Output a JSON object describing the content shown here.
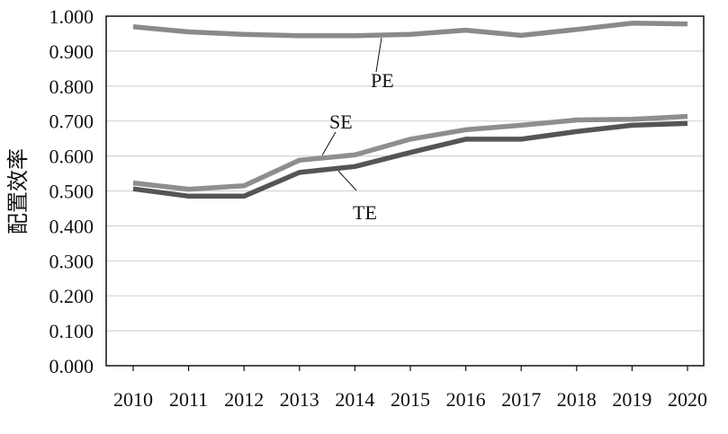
{
  "chart_data": {
    "type": "line",
    "title": "",
    "xlabel": "",
    "ylabel": "配置效率",
    "categories": [
      "2010",
      "2011",
      "2012",
      "2013",
      "2014",
      "2015",
      "2016",
      "2017",
      "2018",
      "2019",
      "2020"
    ],
    "ylim": [
      0,
      1
    ],
    "yticks": [
      "0.000",
      "0.100",
      "0.200",
      "0.300",
      "0.400",
      "0.500",
      "0.600",
      "0.700",
      "0.800",
      "0.900",
      "1.000"
    ],
    "grid": true,
    "legend": "none",
    "series": [
      {
        "name": "PE",
        "color": "#8a8a8a",
        "values": [
          0.97,
          0.955,
          0.948,
          0.944,
          0.944,
          0.948,
          0.96,
          0.945,
          0.962,
          0.98,
          0.978
        ]
      },
      {
        "name": "SE",
        "color": "#8e8e8e",
        "values": [
          0.523,
          0.505,
          0.515,
          0.588,
          0.603,
          0.648,
          0.675,
          0.688,
          0.703,
          0.705,
          0.713
        ]
      },
      {
        "name": "TE",
        "color": "#555555",
        "values": [
          0.506,
          0.485,
          0.485,
          0.553,
          0.57,
          0.61,
          0.648,
          0.648,
          0.67,
          0.688,
          0.693
        ]
      }
    ]
  }
}
